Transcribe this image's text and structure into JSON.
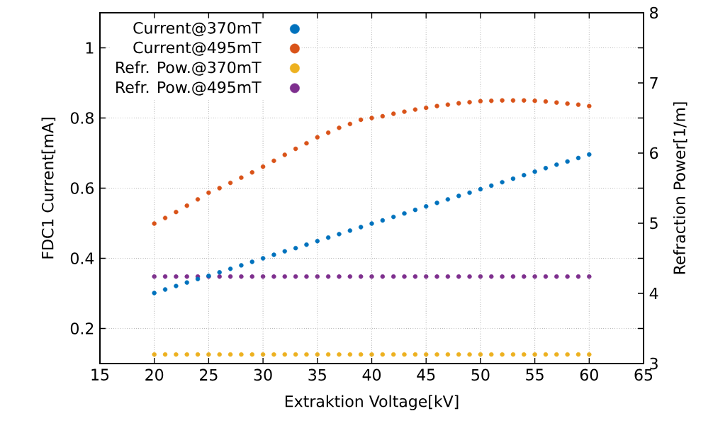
{
  "chart_data": {
    "type": "scatter",
    "xlabel": "Extraktion Voltage[kV]",
    "ylabel": "FDC1 Current[mA]",
    "y2label": "Refraction Power[1/m]",
    "x": [
      20,
      21,
      22,
      23,
      24,
      25,
      26,
      27,
      28,
      29,
      30,
      31,
      32,
      33,
      34,
      35,
      36,
      37,
      38,
      39,
      40,
      41,
      42,
      43,
      44,
      45,
      46,
      47,
      48,
      49,
      50,
      51,
      52,
      53,
      54,
      55,
      56,
      57,
      58,
      59,
      60
    ],
    "series": [
      {
        "name": "Current@370mT",
        "color": "#0072bd",
        "values": [
          0.301,
          0.311,
          0.321,
          0.331,
          0.341,
          0.35,
          0.36,
          0.37,
          0.38,
          0.39,
          0.4,
          0.41,
          0.42,
          0.429,
          0.439,
          0.449,
          0.459,
          0.469,
          0.479,
          0.489,
          0.499,
          0.508,
          0.518,
          0.528,
          0.538,
          0.548,
          0.558,
          0.568,
          0.578,
          0.587,
          0.597,
          0.607,
          0.617,
          0.627,
          0.637,
          0.647,
          0.657,
          0.667,
          0.676,
          0.686,
          0.696
        ]
      },
      {
        "name": "Current@495mT",
        "color": "#d95319",
        "values": [
          0.499,
          0.515,
          0.532,
          0.55,
          0.568,
          0.587,
          0.6,
          0.615,
          0.63,
          0.645,
          0.661,
          0.678,
          0.695,
          0.712,
          0.728,
          0.745,
          0.758,
          0.772,
          0.783,
          0.795,
          0.8,
          0.805,
          0.812,
          0.818,
          0.824,
          0.829,
          0.834,
          0.838,
          0.842,
          0.845,
          0.848,
          0.849,
          0.85,
          0.85,
          0.85,
          0.849,
          0.847,
          0.844,
          0.841,
          0.838,
          0.834
        ]
      },
      {
        "name": "Refr. Pow.@370mT",
        "color": "#edb120",
        "axis": "y2",
        "values": [
          3.13,
          3.13,
          3.13,
          3.13,
          3.13,
          3.13,
          3.13,
          3.13,
          3.13,
          3.13,
          3.13,
          3.13,
          3.13,
          3.13,
          3.13,
          3.13,
          3.13,
          3.13,
          3.13,
          3.13,
          3.13,
          3.13,
          3.13,
          3.13,
          3.13,
          3.13,
          3.13,
          3.13,
          3.13,
          3.13,
          3.13,
          3.13,
          3.13,
          3.13,
          3.13,
          3.13,
          3.13,
          3.13,
          3.13,
          3.13,
          3.13
        ]
      },
      {
        "name": "Refr. Pow.@495mT",
        "color": "#7e2f8e",
        "axis": "y2",
        "values": [
          4.24,
          4.24,
          4.24,
          4.24,
          4.24,
          4.24,
          4.24,
          4.24,
          4.24,
          4.24,
          4.24,
          4.24,
          4.24,
          4.24,
          4.24,
          4.24,
          4.24,
          4.24,
          4.24,
          4.24,
          4.24,
          4.24,
          4.24,
          4.24,
          4.24,
          4.24,
          4.24,
          4.24,
          4.24,
          4.24,
          4.24,
          4.24,
          4.24,
          4.24,
          4.24,
          4.24,
          4.24,
          4.24,
          4.24,
          4.24,
          4.24
        ]
      }
    ],
    "xlim": [
      15,
      65
    ],
    "xticks": [
      15,
      20,
      25,
      30,
      35,
      40,
      45,
      50,
      55,
      60,
      65
    ],
    "ylim": [
      0.1,
      1.1
    ],
    "yticks": [
      0.2,
      0.4,
      0.6,
      0.8,
      1
    ],
    "y2lim": [
      3,
      8
    ],
    "y2ticks": [
      3,
      4,
      5,
      6,
      7,
      8
    ],
    "grid": true,
    "legend": "top left",
    "marker": "circle"
  }
}
